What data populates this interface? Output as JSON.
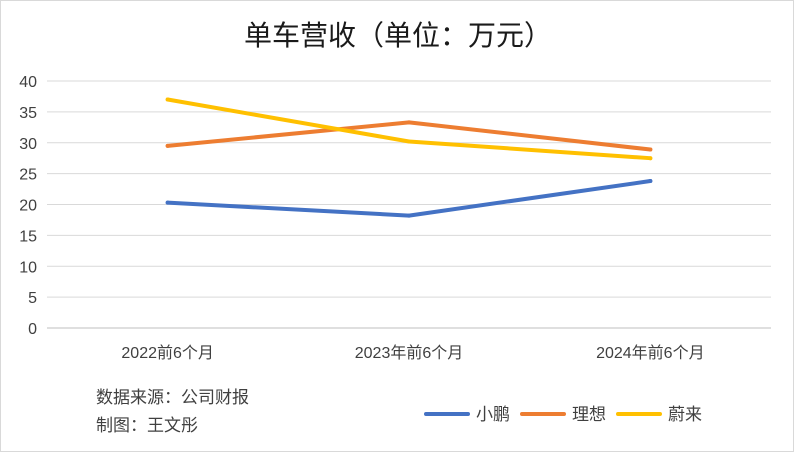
{
  "chart_data": {
    "type": "line",
    "title": "单车营收（单位：万元）",
    "categories": [
      "2022前6个月",
      "2023年前6个月",
      "2024年前6个月"
    ],
    "series": [
      {
        "name": "小鹏",
        "color": "#4472C4",
        "values": [
          20.3,
          18.2,
          23.8
        ]
      },
      {
        "name": "理想",
        "color": "#ED7D31",
        "values": [
          29.5,
          33.3,
          28.9
        ]
      },
      {
        "name": "蔚来",
        "color": "#FFC000",
        "values": [
          37.0,
          30.2,
          27.5
        ]
      }
    ],
    "ylim": [
      0,
      40
    ],
    "yticks": [
      0,
      5,
      10,
      15,
      20,
      25,
      30,
      35,
      40
    ],
    "grid": true,
    "legend": "bottom-right",
    "xlabel": "",
    "ylabel": ""
  },
  "source_lines": [
    "数据来源：公司财报",
    "制图：王文彤"
  ]
}
